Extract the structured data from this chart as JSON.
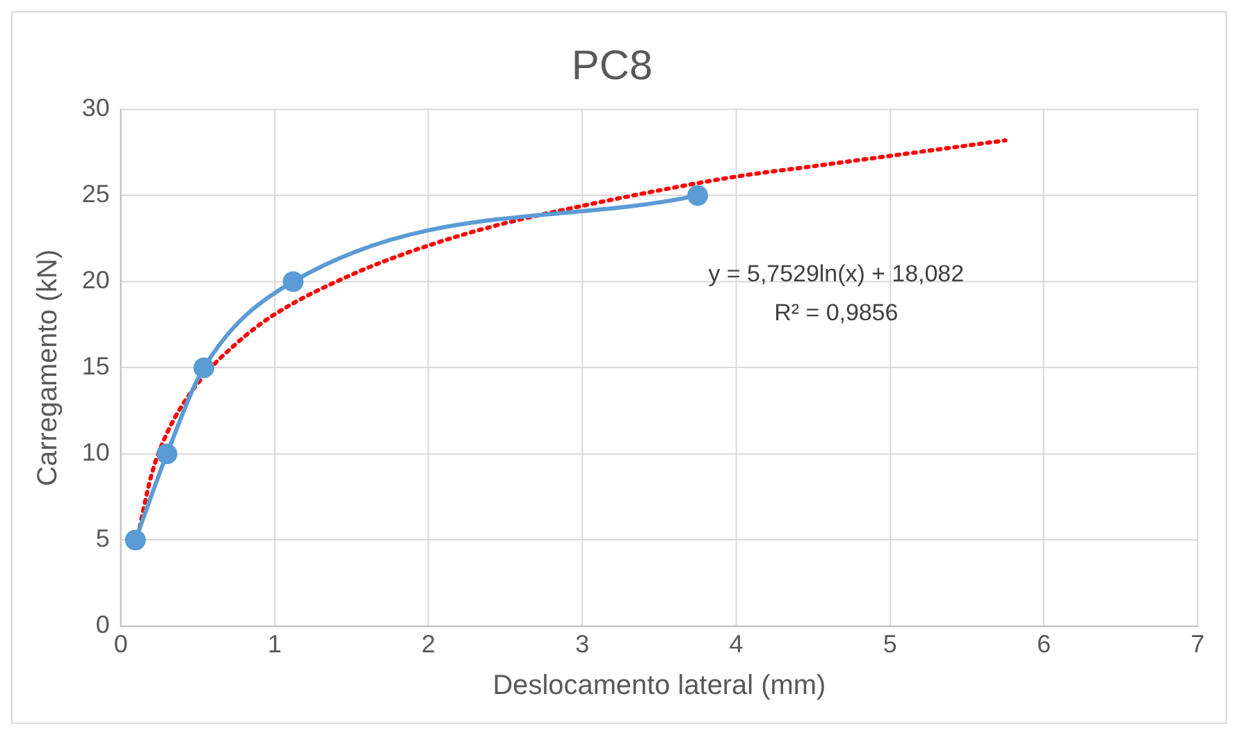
{
  "chart_data": {
    "type": "scatter",
    "title": "PC8",
    "xlabel": "Deslocamento lateral (mm)",
    "ylabel": "Carregamento (kN)",
    "xlim": [
      0,
      7
    ],
    "xticks": [
      0,
      1,
      2,
      3,
      4,
      5,
      6,
      7
    ],
    "ylim": [
      0,
      30
    ],
    "yticks": [
      0,
      5,
      10,
      15,
      20,
      25,
      30
    ],
    "grid": true,
    "legend": false,
    "series": [
      {
        "type": "line",
        "color": "#5b9bd5",
        "marker": "circle",
        "line_style": "solid",
        "x": [
          0.095,
          0.3,
          0.54,
          1.12,
          3.75
        ],
        "values": [
          5,
          10,
          15,
          20,
          25
        ]
      },
      {
        "type": "line",
        "color": "#ff0000",
        "marker": "none",
        "line_style": "dotted",
        "x": [
          0.1,
          0.2,
          0.3,
          0.5,
          0.75,
          1,
          1.5,
          2,
          2.5,
          3,
          3.5,
          4,
          4.5,
          5,
          5.75
        ],
        "values": [
          4.8,
          8.8,
          11.2,
          14.1,
          16.4,
          18.1,
          20.4,
          22.1,
          23.4,
          24.4,
          25.3,
          26.1,
          26.7,
          27.3,
          28.2
        ]
      }
    ],
    "annotations": [
      "y = 5,7529ln(x) + 18,082",
      "R² = 0,9856"
    ]
  }
}
